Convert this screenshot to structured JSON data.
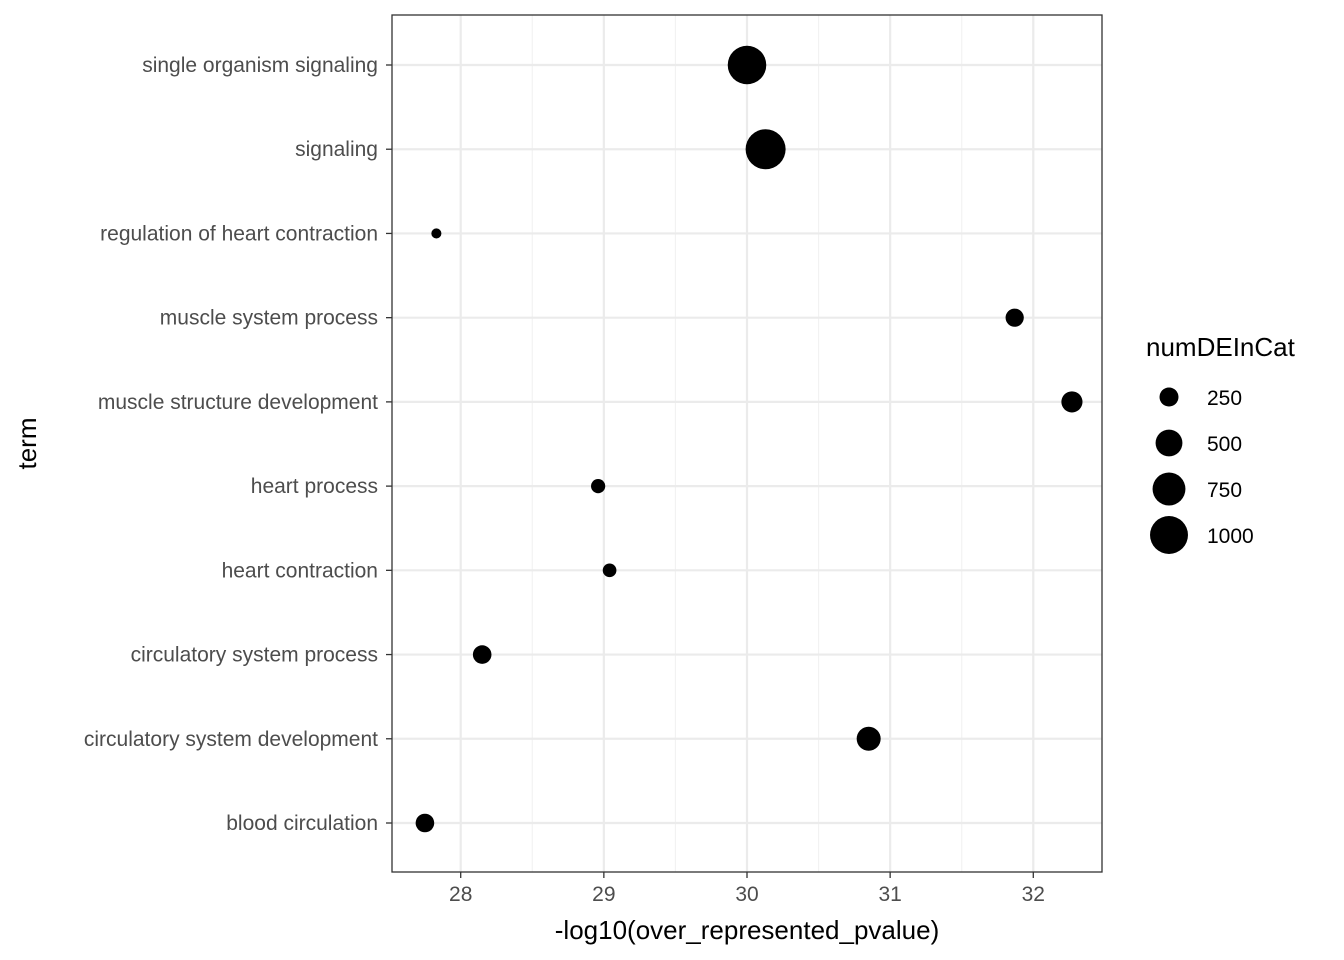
{
  "chart_data": {
    "type": "scatter",
    "xlabel": "-log10(over_represented_pvalue)",
    "ylabel": "term",
    "xlim": [
      27.52,
      32.48
    ],
    "xticks": [
      28,
      29,
      30,
      31,
      32
    ],
    "categories": [
      "blood circulation",
      "circulatory system development",
      "circulatory system process",
      "heart contraction",
      "heart process",
      "muscle structure development",
      "muscle system process",
      "regulation of heart contraction",
      "signaling",
      "single organism signaling"
    ],
    "points": [
      {
        "term": "single organism signaling",
        "x": 30.0,
        "size": 1030
      },
      {
        "term": "signaling",
        "x": 30.13,
        "size": 1110
      },
      {
        "term": "regulation of heart contraction",
        "x": 27.83,
        "size": 70
      },
      {
        "term": "muscle system process",
        "x": 31.87,
        "size": 230
      },
      {
        "term": "muscle structure development",
        "x": 32.27,
        "size": 310
      },
      {
        "term": "heart process",
        "x": 28.96,
        "size": 140
      },
      {
        "term": "heart contraction",
        "x": 29.04,
        "size": 130
      },
      {
        "term": "circulatory system process",
        "x": 28.15,
        "size": 240
      },
      {
        "term": "circulatory system development",
        "x": 30.85,
        "size": 400
      },
      {
        "term": "blood circulation",
        "x": 27.75,
        "size": 240
      }
    ],
    "grid": true,
    "legend": {
      "title": "numDEInCat",
      "placement": "right",
      "entries": [
        {
          "label": "250",
          "size": 250
        },
        {
          "label": "500",
          "size": 500
        },
        {
          "label": "750",
          "size": 750
        },
        {
          "label": "1000",
          "size": 1000
        }
      ]
    },
    "colors": {
      "point": "#000000",
      "grid_major": "#ebebeb",
      "grid_minor": "#f2f2f2",
      "panel_border": "#333333",
      "tick_text": "#4d4d4d"
    }
  }
}
